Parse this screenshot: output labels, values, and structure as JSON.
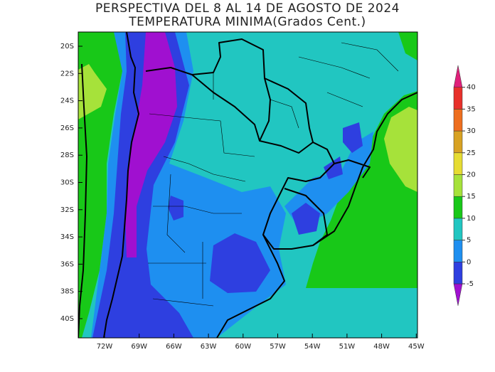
{
  "title": [
    "PERSPECTIVA DEL 8 AL 14 DE AGOSTO DE 2024",
    "TEMPERATURA MINIMA(Grados Cent.)"
  ],
  "lat_labels": [
    "20S",
    "22S",
    "24S",
    "26S",
    "28S",
    "30S",
    "32S",
    "34S",
    "36S",
    "38S",
    "40S"
  ],
  "lon_labels": [
    "72W",
    "69W",
    "66W",
    "63W",
    "60W",
    "57W",
    "54W",
    "51W",
    "48W",
    "45W"
  ],
  "colorbar": {
    "levels": [
      -5,
      0,
      5,
      10,
      15,
      20,
      25,
      30,
      35,
      40
    ],
    "colors": [
      "#a010d0",
      "#2e3fe0",
      "#1e8ff0",
      "#21c6c1",
      "#18c818",
      "#a6e23a",
      "#e6dc32",
      "#d8a222",
      "#ee6e1e",
      "#e8302a",
      "#e0207a"
    ]
  }
}
